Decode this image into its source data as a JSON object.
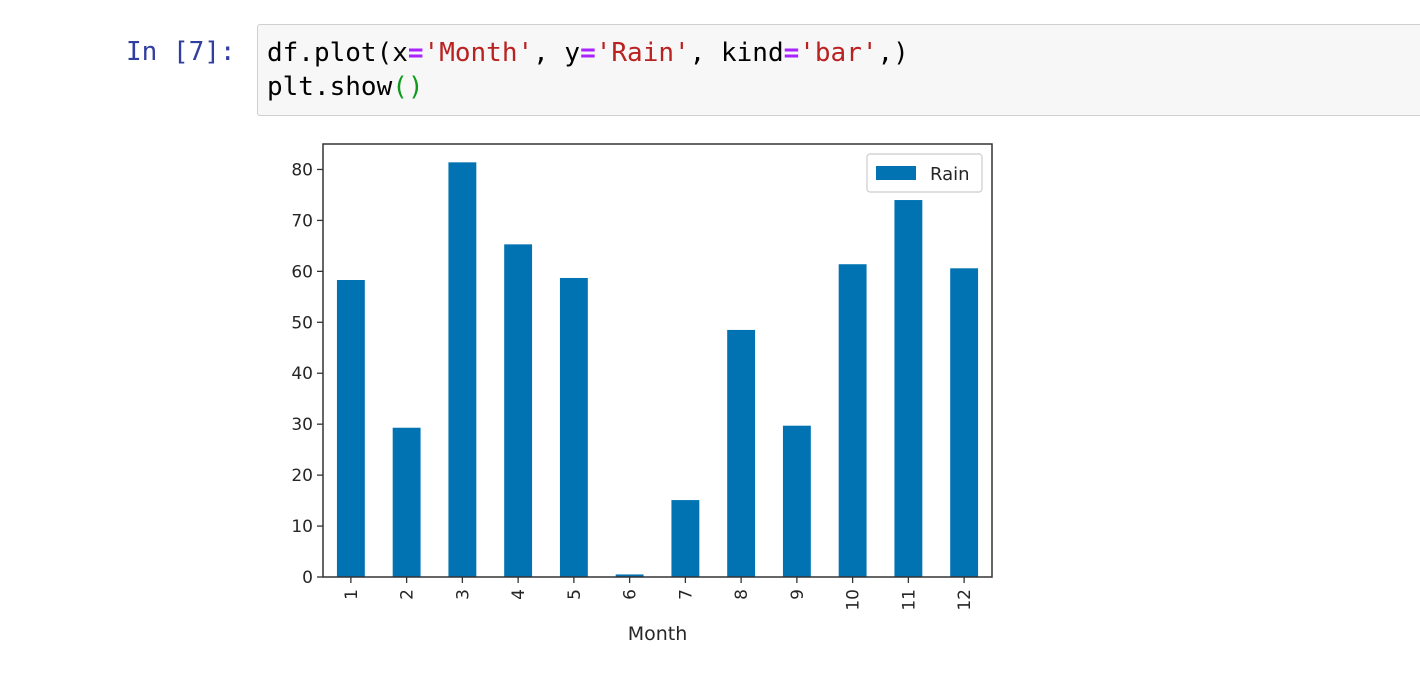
{
  "cell": {
    "prompt": "In [7]:",
    "code_line1": {
      "p1": "df.plot(x",
      "op1": "=",
      "s1": "'Month'",
      "p2": ", y",
      "op2": "=",
      "s2": "'Rain'",
      "p3": ", kind",
      "op3": "=",
      "s3": "'bar'",
      "p4": ",)"
    },
    "code_line2": {
      "p1": "plt.show",
      "paren": "()"
    }
  },
  "colors": {
    "bar": "#0173b2",
    "axis": "#333333",
    "code_bg": "#f7f7f7"
  },
  "chart_data": {
    "type": "bar",
    "categories": [
      "1",
      "2",
      "3",
      "4",
      "5",
      "6",
      "7",
      "8",
      "9",
      "10",
      "11",
      "12"
    ],
    "series": [
      {
        "name": "Rain",
        "values": [
          58.3,
          29.3,
          81.4,
          65.3,
          58.7,
          0.5,
          15.1,
          48.5,
          29.7,
          61.4,
          74.0,
          60.6
        ]
      }
    ],
    "xlabel": "Month",
    "ylabel": "",
    "ylim": [
      0,
      85
    ],
    "yticks": [
      0,
      10,
      20,
      30,
      40,
      50,
      60,
      70,
      80
    ],
    "legend": "top-right",
    "grid": false
  }
}
